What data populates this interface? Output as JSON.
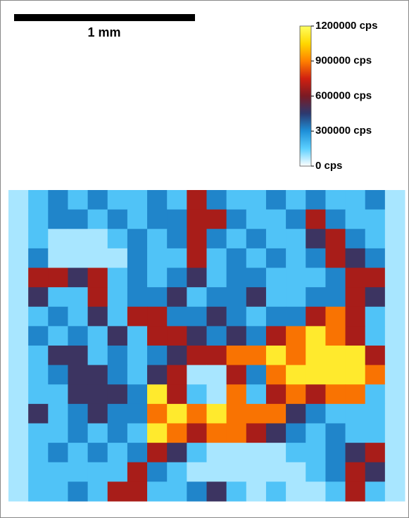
{
  "chart_data": {
    "type": "heatmap",
    "scale_bar_label": "1 mm",
    "colorscale": [
      "#ffffff",
      "#5cd0ff",
      "#1e90d8",
      "#2c3a70",
      "#7a1a24",
      "#d02010",
      "#ff8000",
      "#ffd800",
      "#ffff60"
    ],
    "clim": [
      0,
      1200000
    ],
    "cticks": [
      {
        "value": 0,
        "label": "0 cps"
      },
      {
        "value": 300000,
        "label": "300000 cps"
      },
      {
        "value": 600000,
        "label": "600000 cps"
      },
      {
        "value": 900000,
        "label": "900000 cps"
      },
      {
        "value": 1200000,
        "label": "1200000 cps"
      }
    ],
    "values": [
      [
        80000,
        180000,
        320000,
        180000,
        320000,
        180000,
        180000,
        320000,
        180000,
        680000,
        320000,
        180000,
        180000,
        320000,
        180000,
        320000,
        180000,
        180000,
        320000,
        80000
      ],
      [
        80000,
        180000,
        320000,
        320000,
        180000,
        320000,
        180000,
        320000,
        320000,
        680000,
        680000,
        320000,
        180000,
        180000,
        320000,
        680000,
        320000,
        180000,
        180000,
        80000
      ],
      [
        80000,
        180000,
        80000,
        80000,
        80000,
        180000,
        320000,
        180000,
        320000,
        680000,
        320000,
        180000,
        320000,
        180000,
        180000,
        480000,
        680000,
        320000,
        180000,
        80000
      ],
      [
        80000,
        320000,
        80000,
        80000,
        80000,
        80000,
        320000,
        180000,
        180000,
        680000,
        180000,
        320000,
        180000,
        320000,
        180000,
        320000,
        680000,
        480000,
        320000,
        80000
      ],
      [
        80000,
        680000,
        680000,
        480000,
        680000,
        180000,
        320000,
        180000,
        320000,
        480000,
        180000,
        320000,
        320000,
        180000,
        180000,
        180000,
        320000,
        680000,
        680000,
        80000
      ],
      [
        80000,
        480000,
        180000,
        180000,
        680000,
        180000,
        320000,
        320000,
        480000,
        180000,
        320000,
        320000,
        480000,
        180000,
        180000,
        320000,
        320000,
        680000,
        480000,
        80000
      ],
      [
        80000,
        180000,
        320000,
        180000,
        480000,
        180000,
        680000,
        680000,
        320000,
        320000,
        480000,
        320000,
        180000,
        320000,
        320000,
        680000,
        880000,
        680000,
        180000,
        80000
      ],
      [
        80000,
        320000,
        180000,
        320000,
        180000,
        480000,
        180000,
        680000,
        680000,
        480000,
        320000,
        480000,
        320000,
        680000,
        880000,
        1120000,
        880000,
        680000,
        180000,
        80000
      ],
      [
        80000,
        180000,
        480000,
        480000,
        180000,
        320000,
        180000,
        320000,
        480000,
        680000,
        680000,
        880000,
        880000,
        1120000,
        880000,
        1120000,
        1120000,
        1120000,
        680000,
        80000
      ],
      [
        80000,
        180000,
        320000,
        480000,
        480000,
        320000,
        180000,
        480000,
        680000,
        80000,
        80000,
        680000,
        320000,
        880000,
        1120000,
        1120000,
        1120000,
        1120000,
        880000,
        80000
      ],
      [
        80000,
        180000,
        180000,
        480000,
        480000,
        480000,
        320000,
        1120000,
        680000,
        180000,
        80000,
        880000,
        180000,
        680000,
        880000,
        680000,
        880000,
        880000,
        180000,
        80000
      ],
      [
        80000,
        480000,
        180000,
        320000,
        480000,
        320000,
        320000,
        880000,
        1120000,
        880000,
        1120000,
        880000,
        880000,
        880000,
        480000,
        320000,
        180000,
        180000,
        180000,
        80000
      ],
      [
        80000,
        180000,
        180000,
        320000,
        180000,
        320000,
        180000,
        1120000,
        880000,
        680000,
        880000,
        880000,
        680000,
        480000,
        320000,
        180000,
        320000,
        180000,
        180000,
        80000
      ],
      [
        80000,
        180000,
        320000,
        180000,
        320000,
        180000,
        320000,
        680000,
        480000,
        180000,
        80000,
        80000,
        80000,
        80000,
        180000,
        180000,
        320000,
        480000,
        680000,
        80000
      ],
      [
        80000,
        180000,
        180000,
        180000,
        180000,
        180000,
        680000,
        320000,
        180000,
        80000,
        80000,
        80000,
        80000,
        80000,
        80000,
        180000,
        320000,
        680000,
        480000,
        80000
      ],
      [
        80000,
        180000,
        180000,
        320000,
        180000,
        680000,
        680000,
        180000,
        180000,
        320000,
        480000,
        180000,
        80000,
        180000,
        80000,
        80000,
        180000,
        680000,
        180000,
        80000
      ]
    ]
  }
}
